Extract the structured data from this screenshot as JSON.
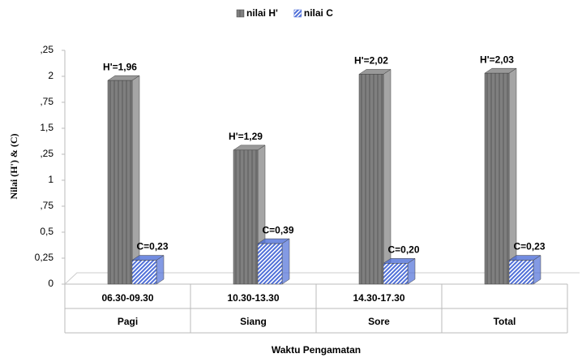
{
  "chart_data": {
    "type": "bar3d",
    "y_label": "Nilai (H') & (C)",
    "x_label": "Waktu Pengamatan",
    "time_ranges": [
      "06.30-09.30",
      "10.30-13.30",
      "14.30-17.30",
      null
    ],
    "categories": [
      "Pagi",
      "Siang",
      "Sore",
      "Total"
    ],
    "series": [
      {
        "name": "nilai H'",
        "color": "#7f7f7f",
        "values": [
          1.96,
          1.29,
          2.02,
          2.03
        ],
        "value_labels": [
          "H'=1,96",
          "H'=1,29",
          "H'=2,02",
          "H'=2,03"
        ]
      },
      {
        "name": "nilai C",
        "color": "#4f6fd8",
        "values": [
          0.23,
          0.39,
          0.2,
          0.23
        ],
        "value_labels": [
          "C=0,23",
          "C=0,39",
          "C=0,20",
          "C=0,23"
        ]
      }
    ],
    "ylim": [
      0,
      2.25
    ],
    "yticks": [
      0,
      {
        "value": 0.25,
        "label": "0,25"
      },
      {
        "value": 0.5,
        "label": "0,5"
      },
      {
        "value": 0.75,
        "label": ",75"
      },
      1,
      {
        "value": 1.25,
        "label": ",25"
      },
      {
        "value": 1.5,
        "label": "1,5"
      },
      {
        "value": 1.75,
        "label": ",75"
      },
      2,
      {
        "value": 2.25,
        "label": ",25"
      }
    ]
  }
}
